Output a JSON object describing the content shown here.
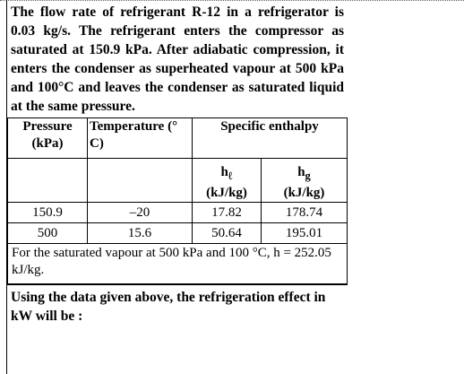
{
  "question": {
    "intro": "The flow rate of refrigerant R-12 in a refrigerator is 0.03 kg/s. The refrigerant enters the compressor as saturated at 150.9 kPa. After adiabatic compression, it enters the condenser as superheated vapour at 500 kPa and 100°C and leaves the condenser as saturated liquid at the same pressure.",
    "prompt": "Using the data given above, the refrigeration effect in kW will be :"
  },
  "table": {
    "header": [
      "Pressure (kPa)",
      "Temperature (°C)",
      "Specific enthalpy"
    ],
    "subheader": [
      {
        "symbol": "h",
        "sub": "ℓ",
        "unit": "(kJ/kg)"
      },
      {
        "symbol": "h",
        "sub": "g",
        "unit": "(kJ/kg)"
      }
    ],
    "rows": [
      [
        "150.9",
        "–20",
        "17.82",
        "178.74"
      ],
      [
        "500",
        "15.6",
        "50.64",
        "195.01"
      ]
    ],
    "note": "For the saturated vapour at 500 kPa and 100 °C, h = 252.05 kJ/kg."
  }
}
